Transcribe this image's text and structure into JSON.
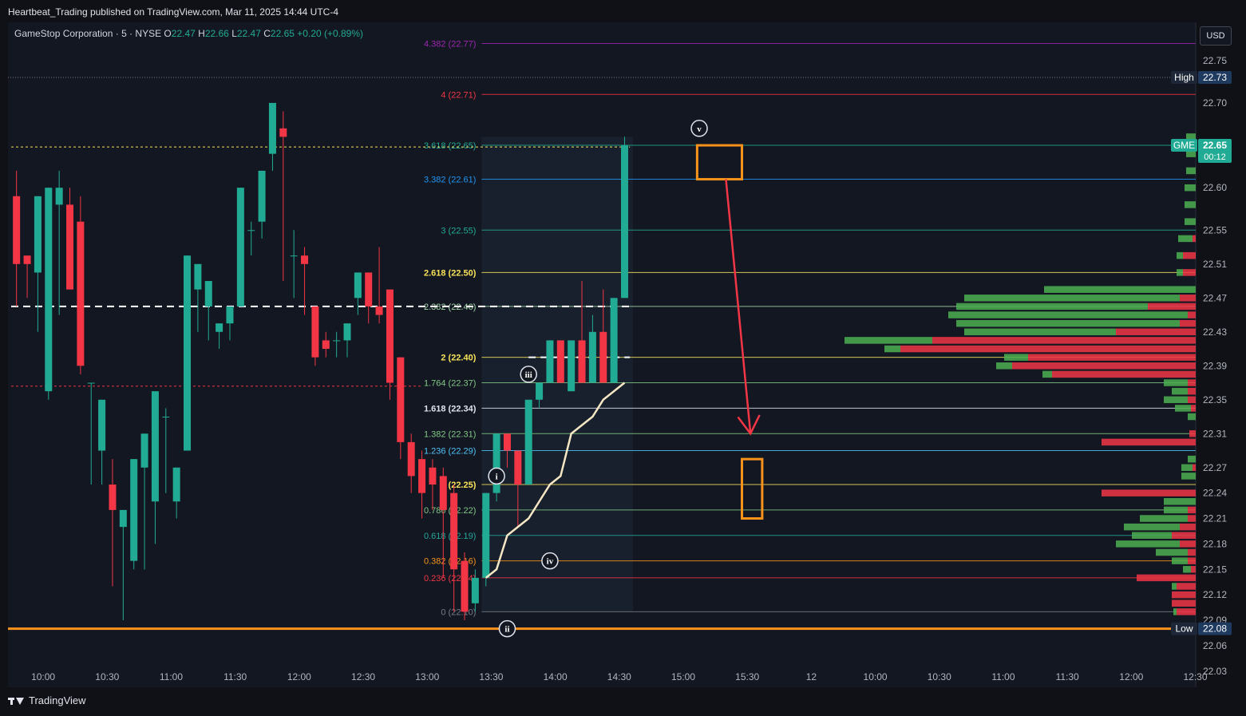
{
  "header": {
    "published": "Heartbeat_Trading published on TradingView.com, Mar 11, 2025 14:44 UTC-4"
  },
  "legend": {
    "symbol": "GameStop Corporation · 5 · NYSE",
    "o_label": "O",
    "o": "22.47",
    "h_label": "H",
    "h": "22.66",
    "l_label": "L",
    "l": "22.47",
    "c_label": "C",
    "c": "22.65",
    "change": "+0.20 (+0.89%)"
  },
  "currency_button": "USD",
  "footer": {
    "brand": "TradingView"
  },
  "colors": {
    "background": "#131722",
    "up": "#22ab94",
    "down": "#f23645",
    "orange": "#f7931a",
    "arrow": "#f23645",
    "vwap": "#f5e6c4"
  },
  "chart_data": {
    "type": "candlestick",
    "ylim": [
      22.01,
      22.795
    ],
    "y_ticks": [
      "22.75",
      "22.70",
      "22.65",
      "22.60",
      "22.55",
      "22.51",
      "22.47",
      "22.43",
      "22.39",
      "22.35",
      "22.31",
      "22.27",
      "22.24",
      "22.21",
      "22.18",
      "22.15",
      "22.12",
      "22.09",
      "22.06",
      "22.03"
    ],
    "x_ticks": [
      "10:00",
      "10:30",
      "11:00",
      "11:30",
      "12:00",
      "12:30",
      "13:00",
      "13:30",
      "14:00",
      "14:30",
      "15:00",
      "15:30",
      "12",
      "10:00",
      "10:30",
      "11:00",
      "11:30",
      "12:00",
      "12:30"
    ],
    "x_tick_slots": [
      3,
      9,
      15,
      21,
      27,
      33,
      39,
      45,
      51,
      57,
      63,
      69,
      75,
      81,
      87,
      93,
      99,
      105,
      111
    ],
    "candles": [
      [
        22.59,
        22.62,
        22.51,
        22.46,
        22.59
      ],
      [
        22.52,
        22.52,
        22.51,
        22.47,
        22.52
      ],
      [
        22.5,
        22.54,
        22.59,
        22.43,
        22.43
      ],
      [
        22.36,
        22.38,
        22.6,
        22.35,
        22.58
      ],
      [
        22.58,
        22.62,
        22.6,
        22.45,
        22.45
      ],
      [
        22.58,
        22.6,
        22.48,
        22.48,
        22.58
      ],
      [
        22.56,
        22.59,
        22.39,
        22.38,
        22.39
      ],
      [
        22.37,
        22.31,
        22.37,
        22.25,
        22.31
      ],
      [
        22.29,
        22.31,
        22.35,
        22.25,
        22.28
      ],
      [
        22.25,
        22.28,
        22.22,
        22.13,
        22.14
      ],
      [
        22.2,
        22.22,
        22.22,
        22.09,
        22.13
      ],
      [
        22.16,
        22.16,
        22.28,
        22.15,
        22.21
      ],
      [
        22.27,
        22.19,
        22.31,
        22.15,
        22.24
      ],
      [
        22.23,
        22.2,
        22.36,
        22.18,
        22.34
      ],
      [
        22.33,
        22.34,
        22.33,
        22.24,
        22.24
      ],
      [
        22.23,
        22.22,
        22.27,
        22.21,
        22.27
      ],
      [
        22.29,
        22.32,
        22.52,
        22.29,
        22.5
      ],
      [
        22.48,
        22.48,
        22.51,
        22.43,
        22.46
      ],
      [
        22.46,
        22.48,
        22.49,
        22.42,
        22.43
      ],
      [
        22.43,
        22.42,
        22.44,
        22.41,
        22.41
      ],
      [
        22.44,
        22.43,
        22.46,
        22.42,
        22.45
      ],
      [
        22.46,
        22.48,
        22.6,
        22.46,
        22.59
      ],
      [
        22.55,
        22.56,
        22.55,
        22.52,
        22.52
      ],
      [
        22.56,
        22.58,
        22.62,
        22.54,
        22.6
      ],
      [
        22.64,
        22.68,
        22.7,
        22.62,
        22.66
      ],
      [
        22.67,
        22.69,
        22.66,
        22.49,
        22.49
      ],
      [
        22.52,
        22.55,
        22.52,
        22.47,
        22.48
      ],
      [
        22.52,
        22.53,
        22.51,
        22.45,
        22.45
      ],
      [
        22.46,
        22.46,
        22.4,
        22.39,
        22.4
      ],
      [
        22.42,
        22.43,
        22.41,
        22.4,
        22.41
      ],
      [
        22.42,
        22.43,
        22.42,
        22.4,
        22.41
      ],
      [
        22.42,
        22.42,
        22.44,
        22.4,
        22.43
      ],
      [
        22.47,
        22.48,
        22.5,
        22.45,
        22.5
      ],
      [
        22.5,
        22.5,
        22.46,
        22.44,
        22.46
      ],
      [
        22.46,
        22.53,
        22.45,
        22.44,
        22.45
      ],
      [
        22.48,
        22.48,
        22.37,
        22.35,
        22.37
      ],
      [
        22.4,
        22.4,
        22.3,
        22.28,
        22.3
      ],
      [
        22.3,
        22.31,
        22.26,
        22.24,
        22.26
      ],
      [
        22.28,
        22.29,
        22.24,
        22.21,
        22.27
      ],
      [
        22.27,
        22.28,
        22.25,
        22.22,
        22.25
      ],
      [
        22.26,
        22.27,
        22.22,
        22.14,
        22.24
      ],
      [
        22.24,
        22.25,
        22.15,
        22.1,
        22.15
      ],
      [
        22.16,
        22.17,
        22.1,
        22.09,
        22.1
      ],
      [
        22.11,
        22.15,
        22.14,
        22.1,
        22.14
      ],
      [
        22.14,
        22.16,
        22.24,
        22.13,
        22.24
      ],
      [
        22.24,
        22.25,
        22.31,
        22.23,
        22.31
      ],
      [
        22.31,
        22.31,
        22.29,
        22.27,
        22.29
      ],
      [
        22.29,
        22.29,
        22.25,
        22.2,
        22.25
      ],
      [
        22.25,
        22.26,
        22.35,
        22.25,
        22.35
      ],
      [
        22.35,
        22.36,
        22.37,
        22.34,
        22.37
      ],
      [
        22.37,
        22.42,
        22.42,
        22.37,
        22.42
      ],
      [
        22.42,
        22.42,
        22.37,
        22.37,
        22.37
      ],
      [
        22.36,
        22.38,
        22.42,
        22.36,
        22.42
      ],
      [
        22.42,
        22.49,
        22.37,
        22.37,
        22.37
      ],
      [
        22.37,
        22.45,
        22.43,
        22.37,
        22.43
      ],
      [
        22.43,
        22.48,
        22.37,
        22.37,
        22.37
      ],
      [
        22.37,
        22.47,
        22.47,
        22.37,
        22.47
      ],
      [
        22.47,
        22.66,
        22.65,
        22.47,
        22.65
      ]
    ],
    "vwap": [
      [
        44,
        22.14
      ],
      [
        45,
        22.15
      ],
      [
        46,
        22.19
      ],
      [
        47,
        22.2
      ],
      [
        48,
        22.21
      ],
      [
        49,
        22.23
      ],
      [
        50,
        22.25
      ],
      [
        51,
        22.26
      ],
      [
        52,
        22.31
      ],
      [
        53,
        22.32
      ],
      [
        54,
        22.33
      ],
      [
        55,
        22.35
      ],
      [
        56,
        22.36
      ],
      [
        57,
        22.37
      ]
    ],
    "fib_levels": [
      {
        "ratio": "4.382",
        "price": 22.77,
        "label": "4.382 (22.77)",
        "color": "#9c27b0"
      },
      {
        "ratio": "4",
        "price": 22.71,
        "label": "4 (22.71)",
        "color": "#f23645"
      },
      {
        "ratio": "3.618",
        "price": 22.65,
        "label": "3.618 (22.65)",
        "color": "#22ab94"
      },
      {
        "ratio": "3.382",
        "price": 22.61,
        "label": "3.382 (22.61)",
        "color": "#2196f3"
      },
      {
        "ratio": "3",
        "price": 22.55,
        "label": "3 (22.55)",
        "color": "#22ab94"
      },
      {
        "ratio": "2.618",
        "price": 22.5,
        "label": "2.618 (22.50)",
        "color": "#f7e35a"
      },
      {
        "ratio": "2.382",
        "price": 22.46,
        "label": "2.382 (22.46)",
        "color": "#a5d6a7"
      },
      {
        "ratio": "2",
        "price": 22.4,
        "label": "2 (22.40)",
        "color": "#f7e35a"
      },
      {
        "ratio": "1.764",
        "price": 22.37,
        "label": "1.764 (22.37)",
        "color": "#81c784"
      },
      {
        "ratio": "1.618",
        "price": 22.34,
        "label": "1.618 (22.34)",
        "color": "#e0e3eb"
      },
      {
        "ratio": "1.382",
        "price": 22.31,
        "label": "1.382 (22.31)",
        "color": "#81c784"
      },
      {
        "ratio": "1.236",
        "price": 22.29,
        "label": "1.236 (22.29)",
        "color": "#4fc3f7"
      },
      {
        "ratio": "1",
        "price": 22.25,
        "label": "1 (22.25)",
        "color": "#f7e35a"
      },
      {
        "ratio": "0.786",
        "price": 22.22,
        "label": "0.786 (22.22)",
        "color": "#81c784"
      },
      {
        "ratio": "0.618",
        "price": 22.19,
        "label": "0.618 (22.19)",
        "color": "#26a69a"
      },
      {
        "ratio": "0.382",
        "price": 22.16,
        "label": "0.382 (22.16)",
        "color": "#f7931a"
      },
      {
        "ratio": "0.236",
        "price": 22.14,
        "label": "0.236 (22.14)",
        "color": "#f23645"
      },
      {
        "ratio": "0",
        "price": 22.1,
        "label": "0 (22.10)",
        "color": "#787b86"
      }
    ],
    "wave_labels": [
      {
        "label": "i",
        "slot": 45,
        "price": 22.26
      },
      {
        "label": "ii",
        "slot": 46,
        "price": 22.08
      },
      {
        "label": "iii",
        "slot": 48,
        "price": 22.38
      },
      {
        "label": "iv",
        "slot": 50,
        "price": 22.16
      },
      {
        "label": "v",
        "slot": 64,
        "price": 22.67
      }
    ],
    "markers": {
      "high": {
        "label": "High",
        "value": "22.73",
        "price": 22.73
      },
      "low": {
        "label": "Low",
        "value": "22.08",
        "price": 22.08
      },
      "last": {
        "label": "GME",
        "value": "22.65",
        "timer": "00:12",
        "price": 22.65
      }
    },
    "volume_profile": [
      {
        "price": 22.66,
        "up": 12,
        "down": 0
      },
      {
        "price": 22.64,
        "up": 12,
        "down": 0
      },
      {
        "price": 22.62,
        "up": 12,
        "down": 0
      },
      {
        "price": 22.6,
        "up": 14,
        "down": 0
      },
      {
        "price": 22.58,
        "up": 14,
        "down": 0
      },
      {
        "price": 22.56,
        "up": 14,
        "down": 0
      },
      {
        "price": 22.54,
        "up": 18,
        "down": 4
      },
      {
        "price": 22.52,
        "up": 8,
        "down": 16
      },
      {
        "price": 22.5,
        "up": 8,
        "down": 16
      },
      {
        "price": 22.48,
        "up": 190,
        "down": 0
      },
      {
        "price": 22.47,
        "up": 270,
        "down": 20
      },
      {
        "price": 22.46,
        "up": 240,
        "down": 60
      },
      {
        "price": 22.45,
        "up": 300,
        "down": 10
      },
      {
        "price": 22.44,
        "up": 280,
        "down": 20
      },
      {
        "price": 22.43,
        "up": 190,
        "down": 100
      },
      {
        "price": 22.42,
        "up": 110,
        "down": 330
      },
      {
        "price": 22.41,
        "up": 20,
        "down": 370
      },
      {
        "price": 22.4,
        "up": 30,
        "down": 210
      },
      {
        "price": 22.39,
        "up": 20,
        "down": 230
      },
      {
        "price": 22.38,
        "up": 12,
        "down": 180
      },
      {
        "price": 22.37,
        "up": 30,
        "down": 10
      },
      {
        "price": 22.36,
        "up": 20,
        "down": 10
      },
      {
        "price": 22.35,
        "up": 30,
        "down": 10
      },
      {
        "price": 22.34,
        "up": 20,
        "down": 6
      },
      {
        "price": 22.33,
        "up": 10,
        "down": 0
      },
      {
        "price": 22.31,
        "up": 0,
        "down": 8
      },
      {
        "price": 22.3,
        "up": 0,
        "down": 118
      },
      {
        "price": 22.28,
        "up": 10,
        "down": 0
      },
      {
        "price": 22.27,
        "up": 14,
        "down": 4
      },
      {
        "price": 22.26,
        "up": 18,
        "down": 0
      },
      {
        "price": 22.24,
        "up": 0,
        "down": 118
      },
      {
        "price": 22.23,
        "up": 40,
        "down": 0
      },
      {
        "price": 22.22,
        "up": 30,
        "down": 10
      },
      {
        "price": 22.21,
        "up": 60,
        "down": 10
      },
      {
        "price": 22.2,
        "up": 70,
        "down": 20
      },
      {
        "price": 22.19,
        "up": 50,
        "down": 30
      },
      {
        "price": 22.18,
        "up": 80,
        "down": 20
      },
      {
        "price": 22.17,
        "up": 40,
        "down": 10
      },
      {
        "price": 22.16,
        "up": 20,
        "down": 10
      },
      {
        "price": 22.15,
        "up": 10,
        "down": 6
      },
      {
        "price": 22.14,
        "up": 0,
        "down": 74
      },
      {
        "price": 22.13,
        "up": 6,
        "down": 24
      },
      {
        "price": 22.12,
        "up": 0,
        "down": 30
      },
      {
        "price": 22.11,
        "up": 0,
        "down": 30
      },
      {
        "price": 22.1,
        "up": 4,
        "down": 24
      }
    ],
    "boxes": [
      {
        "slot_from": 64.3,
        "slot_to": 68.5,
        "price_top": 22.65,
        "price_bottom": 22.61,
        "color": "#f7931a"
      },
      {
        "slot_from": 68.5,
        "slot_to": 70.4,
        "price_top": 22.28,
        "price_bottom": 22.21,
        "color": "#f7931a"
      }
    ],
    "arrow": {
      "from_slot": 67,
      "from_price": 22.61,
      "to_slot": 69.3,
      "to_price": 22.31
    },
    "dashed_levels": [
      {
        "price": 22.46,
        "slot_from": 0,
        "slot_to": 58,
        "color": "#ffffff"
      },
      {
        "price": 22.4,
        "slot_from": 48.5,
        "slot_to": 58,
        "color": "#ffffff"
      },
      {
        "price": 22.366,
        "slot_from": 0,
        "slot_to": 38.5,
        "color": "#f23645"
      },
      {
        "price": 22.648,
        "slot_from": 0,
        "slot_to": 58,
        "color": "#f7e35a"
      }
    ],
    "support_line": {
      "price": 22.08,
      "color": "#f7931a"
    }
  }
}
